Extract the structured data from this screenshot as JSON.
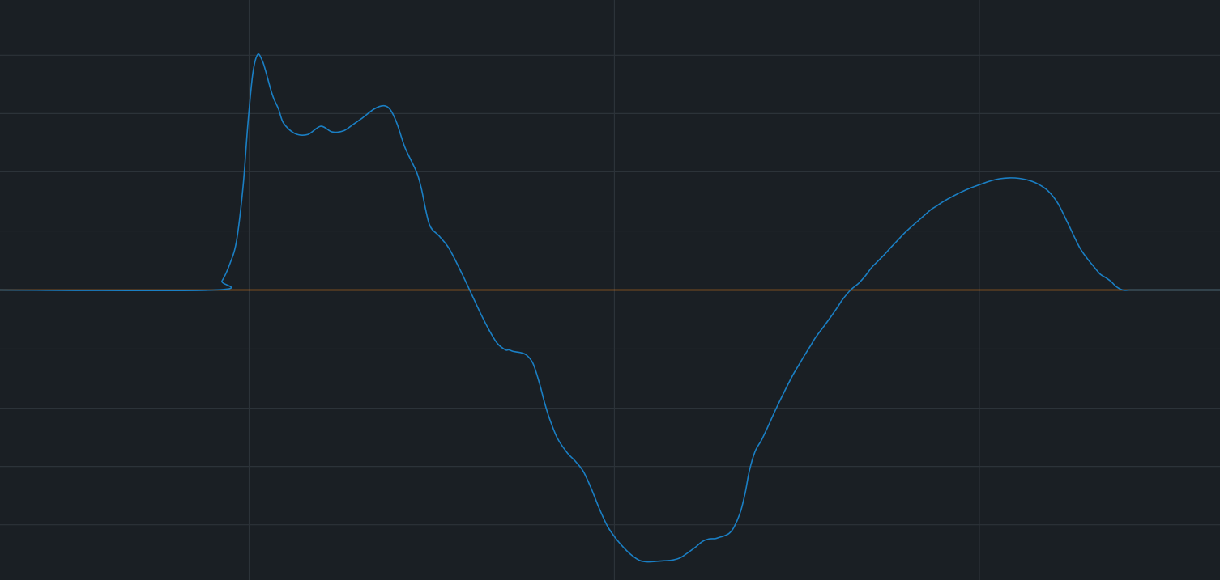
{
  "chart_data": {
    "type": "line",
    "title": "",
    "xlabel": "",
    "ylabel": "",
    "grid": true,
    "legend": "none",
    "xlim": [
      0,
      1
    ],
    "ylim": [
      -1,
      1
    ],
    "x_gridlines": [
      0.2042,
      0.5036,
      0.8028
    ],
    "y_gridlines": [
      -0.8094,
      -0.6085,
      -0.4075,
      -0.2035,
      0.2035,
      0.4075,
      0.6085,
      0.8094
    ],
    "colors": {
      "background": "#1a1f24",
      "grid": "#2c3339",
      "series": "#1a7fc4",
      "baseline": "#d97b1c"
    },
    "series": [
      {
        "color": "#1a7fc4",
        "x": [
          0,
          0.1753,
          0.182,
          0.1886,
          0.1939,
          0.1992,
          0.2032,
          0.2072,
          0.2112,
          0.2151,
          0.2178,
          0.2218,
          0.2244,
          0.2284,
          0.2324,
          0.2417,
          0.2523,
          0.2629,
          0.2722,
          0.2815,
          0.2895,
          0.2961,
          0.3068,
          0.3147,
          0.32,
          0.3254,
          0.332,
          0.3413,
          0.3453,
          0.3519,
          0.3599,
          0.3679,
          0.3772,
          0.3865,
          0.3944,
          0.4011,
          0.4077,
          0.4144,
          0.417,
          0.421,
          0.4263,
          0.4316,
          0.4369,
          0.4422,
          0.4462,
          0.4502,
          0.4568,
          0.4648,
          0.4714,
          0.4781,
          0.4847,
          0.4914,
          0.498,
          0.5046,
          0.5113,
          0.5179,
          0.5246,
          0.5312,
          0.5378,
          0.5445,
          0.5511,
          0.5578,
          0.5644,
          0.5697,
          0.5757,
          0.581,
          0.5863,
          0.5897,
          0.593,
          0.5976,
          0.6016,
          0.6069,
          0.6109,
          0.6142,
          0.6189,
          0.6242,
          0.6295,
          0.6361,
          0.6428,
          0.6494,
          0.6554,
          0.6594,
          0.6647,
          0.6687,
          0.676,
          0.6813,
          0.6866,
          0.6906,
          0.6972,
          0.7039,
          0.7092,
          0.7145,
          0.7198,
          0.7251,
          0.7304,
          0.7357,
          0.741,
          0.7477,
          0.7543,
          0.7583,
          0.7636,
          0.7676,
          0.7716,
          0.7769,
          0.7822,
          0.7875,
          0.7955,
          0.8035,
          0.8114,
          0.8194,
          0.8274,
          0.8353,
          0.8433,
          0.8513,
          0.8592,
          0.8672,
          0.8752,
          0.8845,
          0.8911,
          0.8964,
          0.9017,
          0.907,
          0.911,
          0.915,
          0.9203,
          0.9257,
          0.931,
          0.9363,
          0.9429,
          0.9495,
          0.9562,
          0.9628,
          0.9695,
          0.9761,
          0.9827,
          0.9894,
          0.996,
          1.0
        ],
        "y": [
          0,
          0,
          0.0314,
          0.0925,
          0.17,
          0.3558,
          0.5739,
          0.7459,
          0.8122,
          0.7897,
          0.7543,
          0.6928,
          0.6598,
          0.623,
          0.5753,
          0.5396,
          0.5363,
          0.5647,
          0.5451,
          0.5487,
          0.5711,
          0.5902,
          0.6245,
          0.6354,
          0.6214,
          0.5742,
          0.4908,
          0.4084,
          0.3512,
          0.2268,
          0.1865,
          0.1446,
          0.069,
          -0.014,
          -0.0849,
          -0.1396,
          -0.1843,
          -0.2066,
          -0.2062,
          -0.212,
          -0.2156,
          -0.2244,
          -0.2534,
          -0.3218,
          -0.3857,
          -0.4407,
          -0.5103,
          -0.5606,
          -0.5897,
          -0.6253,
          -0.6853,
          -0.7553,
          -0.815,
          -0.8556,
          -0.8887,
          -0.9151,
          -0.9332,
          -0.9374,
          -0.9357,
          -0.9335,
          -0.9315,
          -0.9228,
          -0.9041,
          -0.8878,
          -0.8673,
          -0.8584,
          -0.8573,
          -0.8528,
          -0.8486,
          -0.8394,
          -0.8181,
          -0.7654,
          -0.6978,
          -0.6242,
          -0.5569,
          -0.5173,
          -0.4706,
          -0.4095,
          -0.3514,
          -0.2969,
          -0.2541,
          -0.2256,
          -0.1899,
          -0.1624,
          -0.1213,
          -0.0906,
          -0.0586,
          -0.0329,
          0,
          0.0236,
          0.0484,
          0.0778,
          0.1003,
          0.123,
          0.1476,
          0.1709,
          0.1946,
          0.2208,
          0.245,
          0.2598,
          0.2789,
          0.2894,
          0.3006,
          0.3139,
          0.3257,
          0.337,
          0.3518,
          0.364,
          0.3755,
          0.3835,
          0.3866,
          0.3849,
          0.3781,
          0.3645,
          0.3411,
          0.2982,
          0.2311,
          0.15,
          0.1089,
          0.0815,
          0.0551,
          0.041,
          0.0281,
          0.0115,
          0,
          0,
          0,
          0,
          0,
          0,
          0,
          0,
          0,
          0,
          0,
          0,
          0,
          0
        ]
      }
    ],
    "baseline": {
      "y": 0,
      "color": "#d97b1c"
    }
  }
}
